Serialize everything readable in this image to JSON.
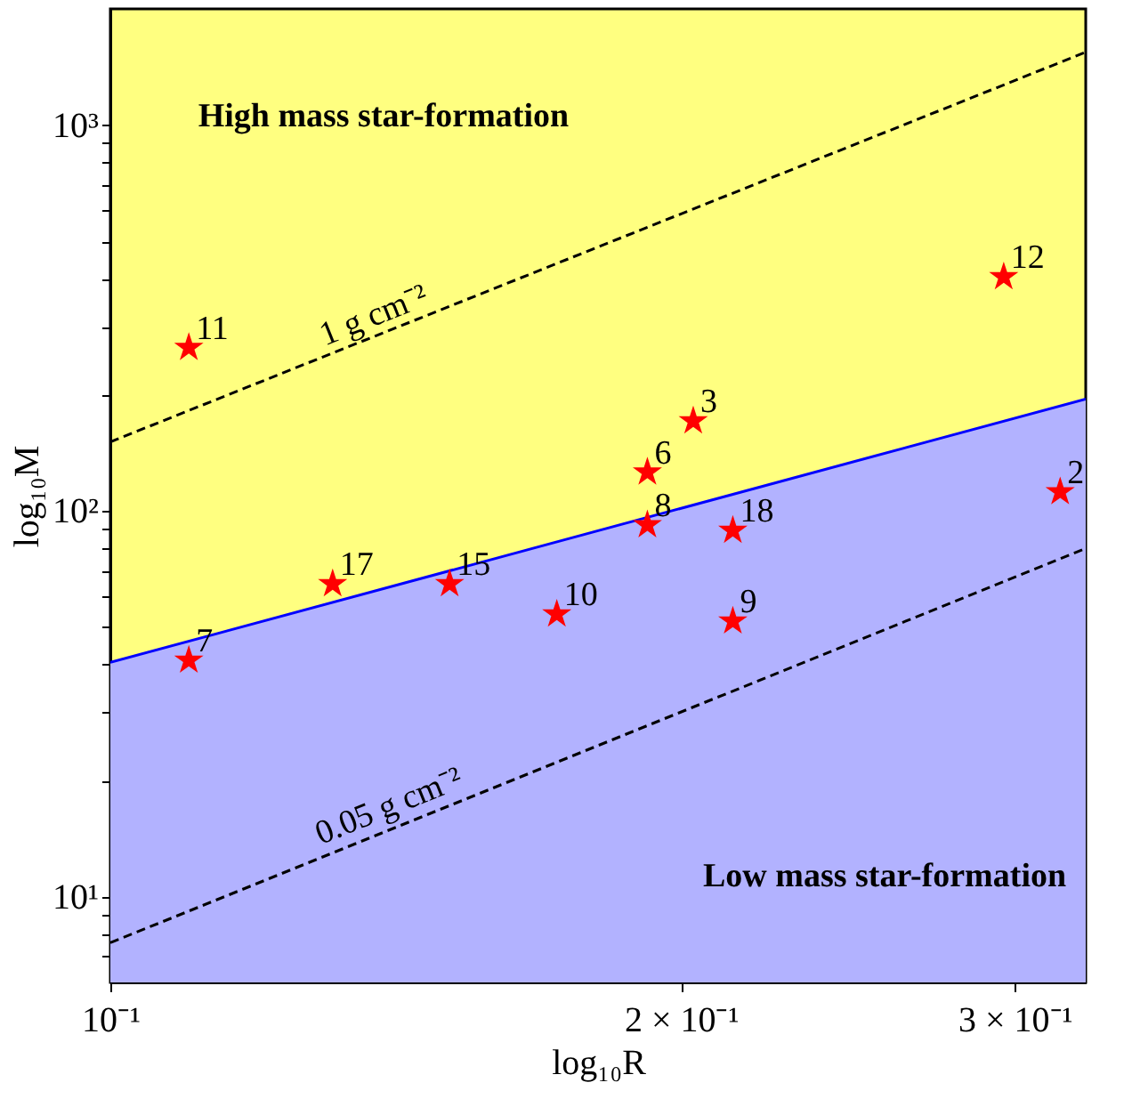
{
  "chart_data": {
    "type": "scatter",
    "xlabel": "log₁₀R",
    "ylabel": "log₁₀M",
    "xlim": [
      0.1,
      0.327
    ],
    "ylim": [
      6,
      2000
    ],
    "xticks": [
      {
        "value": 0.1,
        "label": "10⁻¹"
      },
      {
        "value": 0.2,
        "label": "2 × 10⁻¹"
      },
      {
        "value": 0.3,
        "label": "3 × 10⁻¹"
      }
    ],
    "yticks": [
      {
        "value": 7,
        "label": null
      },
      {
        "value": 8,
        "label": null
      },
      {
        "value": 9,
        "label": null
      },
      {
        "value": 10,
        "label": "10¹"
      },
      {
        "value": 20,
        "label": null
      },
      {
        "value": 30,
        "label": null
      },
      {
        "value": 40,
        "label": null
      },
      {
        "value": 50,
        "label": null
      },
      {
        "value": 60,
        "label": null
      },
      {
        "value": 70,
        "label": null
      },
      {
        "value": 80,
        "label": null
      },
      {
        "value": 90,
        "label": null
      },
      {
        "value": 100,
        "label": "10²"
      },
      {
        "value": 200,
        "label": null
      },
      {
        "value": 300,
        "label": null
      },
      {
        "value": 400,
        "label": null
      },
      {
        "value": 500,
        "label": null
      },
      {
        "value": 600,
        "label": null
      },
      {
        "value": 700,
        "label": null
      },
      {
        "value": 800,
        "label": null
      },
      {
        "value": 900,
        "label": null
      },
      {
        "value": 1000,
        "label": "10³"
      }
    ],
    "log": "xy",
    "grid": false,
    "series": [
      {
        "type": "area",
        "color": "#0000ff",
        "line_style": "solid",
        "x": [
          0.1,
          0.327
        ],
        "values": [
          40.5,
          195
        ]
      },
      {
        "type": "line",
        "color": "#000000",
        "line_style": "dashed",
        "x": [
          0.1,
          0.327
        ],
        "values": [
          151,
          1545
        ]
      },
      {
        "type": "line",
        "color": "#000000",
        "line_style": "dashed",
        "x": [
          0.1,
          0.327
        ],
        "values": [
          7.6,
          80
        ]
      },
      {
        "color": "#ff0000",
        "marker": "star",
        "x": [
          0.11,
          0.296,
          0.203,
          0.192,
          0.192,
          0.213,
          0.317,
          0.131,
          0.151,
          0.172,
          0.213,
          0.11
        ],
        "values": [
          265,
          404,
          171,
          126,
          92,
          89,
          112,
          64.7,
          64.7,
          54,
          51.8,
          41
        ]
      }
    ],
    "annotations": [
      "High mass star-formation",
      "Low mass star-formation",
      {
        "text": "1 g cm⁻²",
        "x": 0.139,
        "y": 286
      },
      {
        "text": "0.05 g cm⁻²",
        "x": 0.1416,
        "y": 15.3
      },
      {
        "text": "11",
        "x": 0.11,
        "y": 265
      },
      {
        "text": "12",
        "x": 0.296,
        "y": 404
      },
      {
        "text": "3",
        "x": 0.203,
        "y": 171
      },
      {
        "text": "6",
        "x": 0.192,
        "y": 126
      },
      {
        "text": "8",
        "x": 0.192,
        "y": 92
      },
      {
        "text": "18",
        "x": 0.213,
        "y": 89
      },
      {
        "text": "2",
        "x": 0.317,
        "y": 112
      },
      {
        "text": "17",
        "x": 0.131,
        "y": 64.7
      },
      {
        "text": "15",
        "x": 0.151,
        "y": 64.7
      },
      {
        "text": "10",
        "x": 0.172,
        "y": 54
      },
      {
        "text": "9",
        "x": 0.213,
        "y": 51.8
      },
      {
        "text": "7",
        "x": 0.11,
        "y": 41
      }
    ]
  }
}
